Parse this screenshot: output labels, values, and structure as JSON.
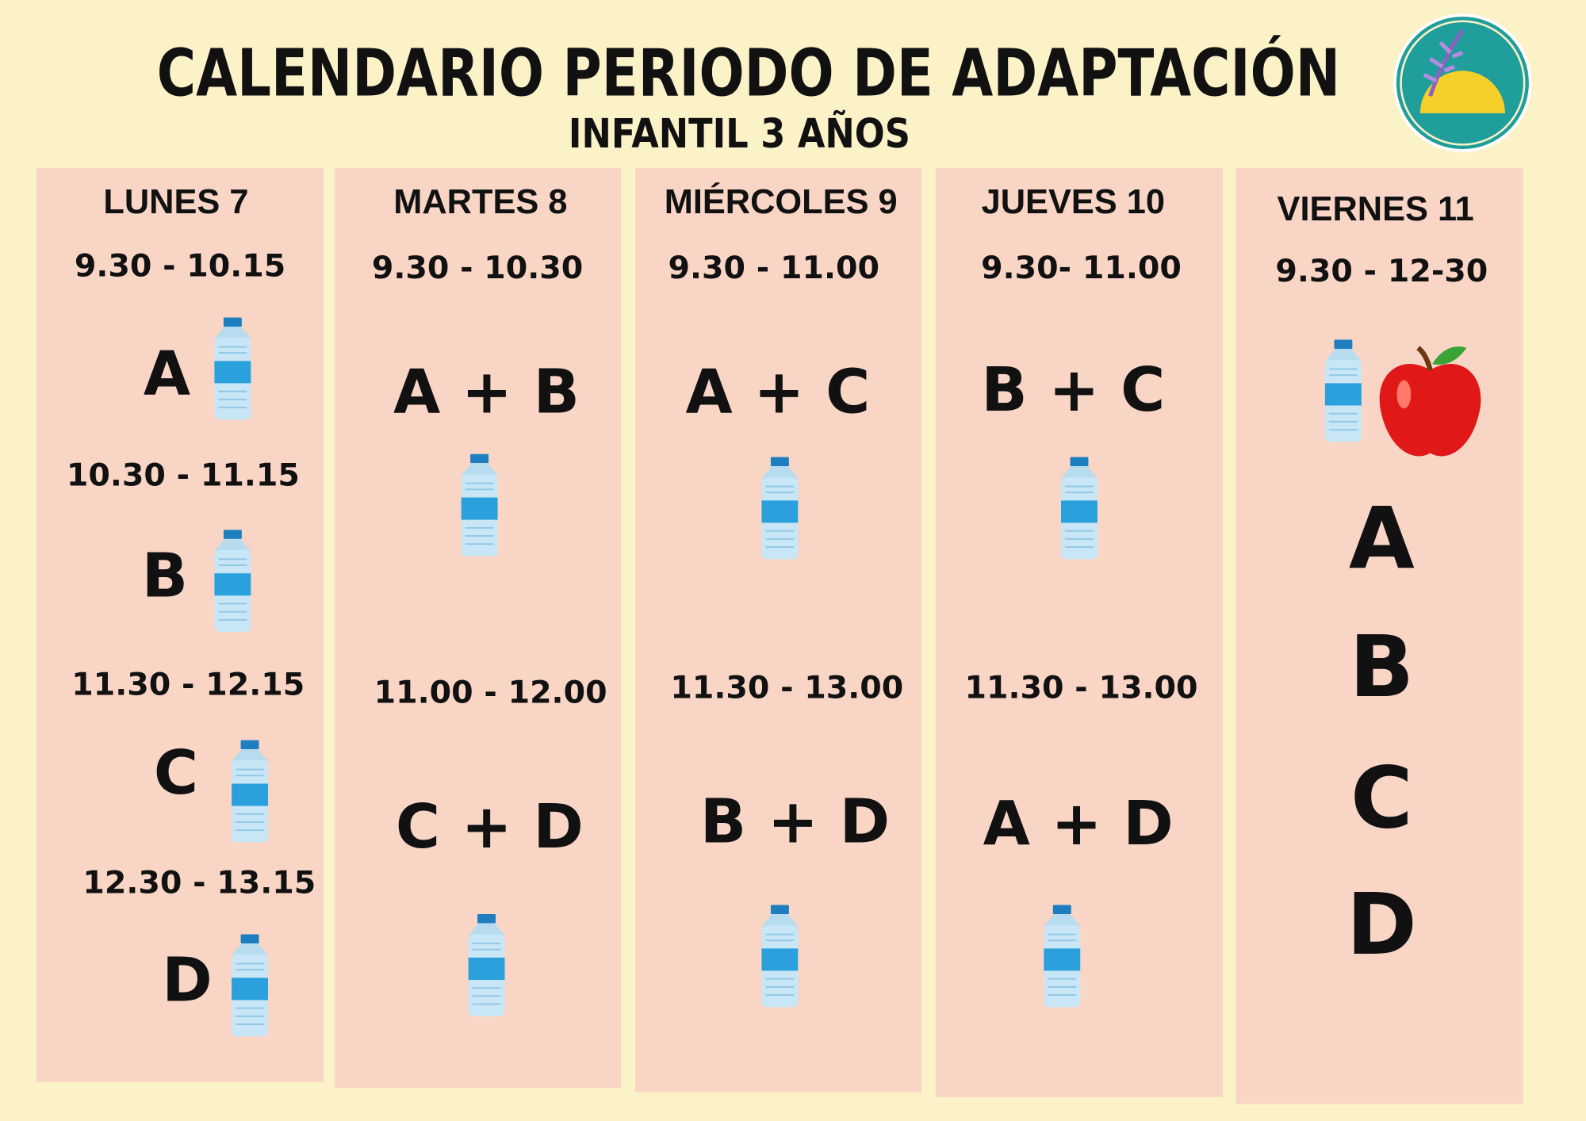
{
  "header": {
    "title": "CALENDARIO PERIODO DE ADAPTACIÓN",
    "subtitle": "INFANTIL 3 AÑOS"
  },
  "columns": [
    {
      "day": "LUNES 7",
      "slots": [
        {
          "time": "9.30 - 10.15",
          "group": "A"
        },
        {
          "time": "10.30 - 11.15",
          "group": "B"
        },
        {
          "time": "11.30 - 12.15",
          "group": "C"
        },
        {
          "time": "12.30 - 13.15",
          "group": "D"
        }
      ]
    },
    {
      "day": "MARTES 8",
      "slots": [
        {
          "time": "9.30 - 10.30",
          "group": "A + B"
        },
        {
          "time": "11.00 - 12.00",
          "group": "C + D"
        }
      ]
    },
    {
      "day": "MIÉRCOLES 9",
      "slots": [
        {
          "time": "9.30 - 11.00",
          "group": "A + C"
        },
        {
          "time": "11.30 - 13.00",
          "group": "B + D"
        }
      ]
    },
    {
      "day": "JUEVES 10",
      "slots": [
        {
          "time": "9.30- 11.00",
          "group": "B + C"
        },
        {
          "time": "11.30 - 13.00",
          "group": "A + D"
        }
      ]
    },
    {
      "day": "VIERNES 11",
      "slots": [
        {
          "time": "9.30 - 12-30",
          "groups": [
            "A",
            "B",
            "C",
            "D"
          ]
        }
      ]
    }
  ]
}
